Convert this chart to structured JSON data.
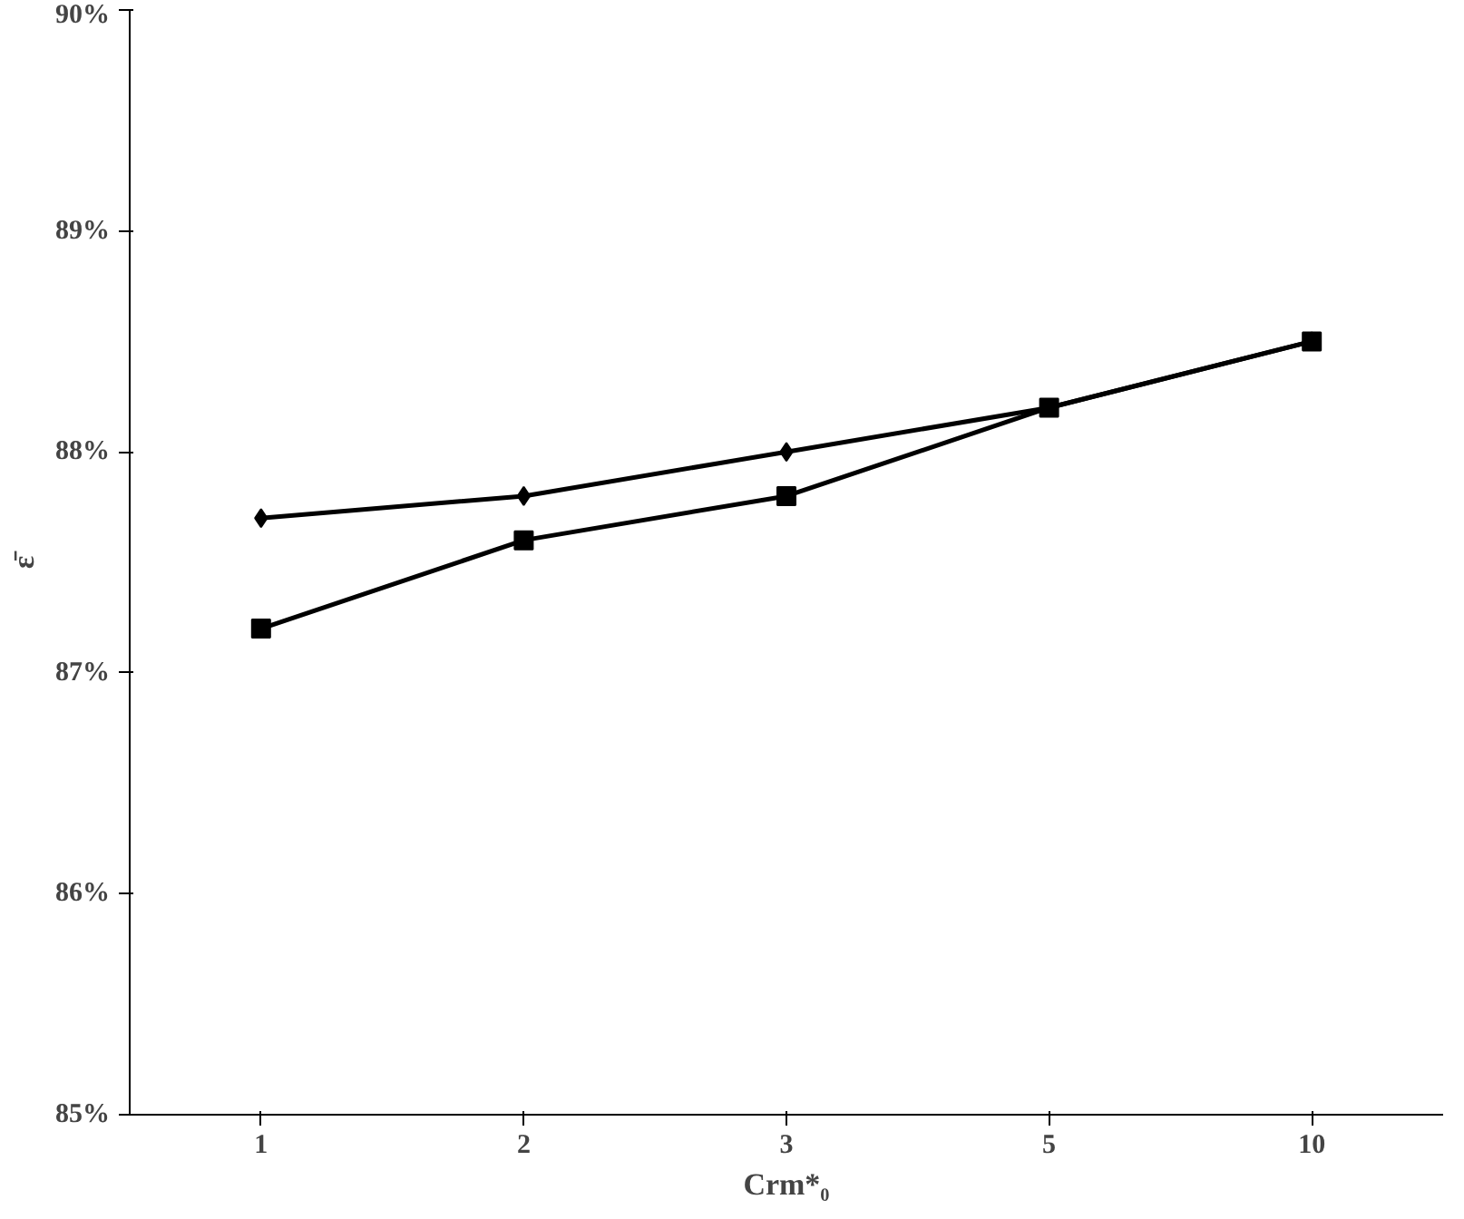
{
  "chart_data": {
    "type": "line",
    "xlabel": "Crm*₀",
    "ylabel": "ε̄",
    "categories": [
      "1",
      "2",
      "3",
      "5",
      "10"
    ],
    "series": [
      {
        "color": "#000000",
        "marker": "diamond",
        "values": [
          87.7,
          87.8,
          88.0,
          88.2,
          88.5
        ]
      },
      {
        "color": "#000000",
        "marker": "square",
        "values": [
          87.2,
          87.6,
          87.8,
          88.2,
          88.5
        ]
      }
    ],
    "ylim": [
      85,
      90
    ],
    "yticks": [
      {
        "value": 85,
        "label": "85%"
      },
      {
        "value": 86,
        "label": "86%"
      },
      {
        "value": 87,
        "label": "87%"
      },
      {
        "value": 88,
        "label": "88%"
      },
      {
        "value": 89,
        "label": "89%"
      },
      {
        "value": 90,
        "label": "90%"
      }
    ],
    "grid": false,
    "line_style": "solid"
  }
}
